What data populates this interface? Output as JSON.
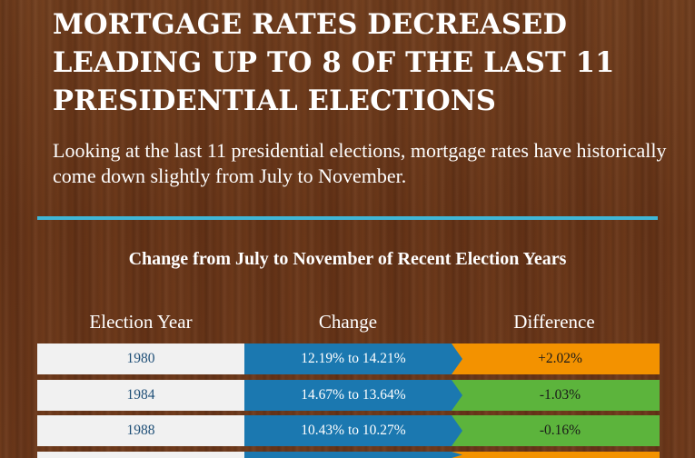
{
  "header": {
    "title": "MORTGAGE RATES DECREASED LEADING UP TO 8 OF THE LAST 11 PRESIDENTIAL ELECTIONS",
    "subtitle": "Looking at the last 11 presidential elections, mortgage rates have historically come down slightly from July to November."
  },
  "table": {
    "title": "Change from July to November of Recent Election Years",
    "columns": [
      "Election Year",
      "Change",
      "Difference"
    ],
    "rows": [
      {
        "year": "1980",
        "change": "12.19% to 14.21%",
        "difference": "+2.02%",
        "direction": "increase"
      },
      {
        "year": "1984",
        "change": "14.67% to 13.64%",
        "difference": "-1.03%",
        "direction": "decrease"
      },
      {
        "year": "1988",
        "change": "10.43% to 10.27%",
        "difference": "-0.16%",
        "direction": "decrease"
      }
    ]
  },
  "colors": {
    "divider": "#3fb6d6",
    "change_cell": "#1b78b0",
    "increase": "#f39200",
    "decrease": "#5cb43c",
    "year_cell": "#f1f1f1"
  }
}
